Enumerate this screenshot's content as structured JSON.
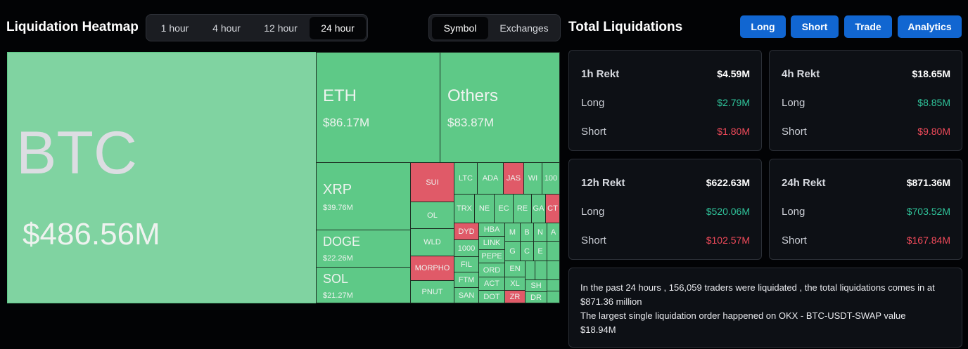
{
  "heatmap": {
    "title": "Liquidation Heatmap",
    "time_tabs": [
      "1 hour",
      "4 hour",
      "12 hour",
      "24 hour"
    ],
    "active_time_tab": "24 hour",
    "mode_tabs": [
      "Symbol",
      "Exchanges"
    ],
    "active_mode_tab": "Symbol",
    "big": [
      {
        "symbol": "BTC",
        "value": "$486.56M"
      },
      {
        "symbol": "ETH",
        "value": "$86.17M"
      },
      {
        "symbol": "Others",
        "value": "$83.87M"
      },
      {
        "symbol": "XRP",
        "value": "$39.76M"
      },
      {
        "symbol": "DOGE",
        "value": "$22.26M"
      },
      {
        "symbol": "SOL",
        "value": "$21.27M"
      }
    ],
    "small": [
      "SUI",
      "OL",
      "WLD",
      "MORPHO",
      "PNUT",
      "LTC",
      "ADA",
      "JAS",
      "WI",
      "100",
      "TRX",
      "NE",
      "EC",
      "RE",
      "GA",
      "CT",
      "DYD",
      "HBA",
      "LINK",
      "PEPE",
      "ORD",
      "ACT",
      "DOT",
      "1000",
      "FIL",
      "FTM",
      "SAN",
      "M",
      "B",
      "N",
      "A",
      "G",
      "C",
      "E",
      "EN",
      "XL",
      "ZR",
      "SH",
      "DR"
    ]
  },
  "total": {
    "title": "Total Liquidations",
    "buttons": [
      "Long",
      "Short",
      "Trade",
      "Analytics"
    ],
    "long_label": "Long",
    "short_label": "Short",
    "cards": [
      {
        "period": "1h Rekt",
        "total": "$4.59M",
        "long": "$2.79M",
        "short": "$1.80M"
      },
      {
        "period": "4h Rekt",
        "total": "$18.65M",
        "long": "$8.85M",
        "short": "$9.80M"
      },
      {
        "period": "12h Rekt",
        "total": "$622.63M",
        "long": "$520.06M",
        "short": "$102.57M"
      },
      {
        "period": "24h Rekt",
        "total": "$871.36M",
        "long": "$703.52M",
        "short": "$167.84M"
      }
    ],
    "info_line1": "In the past 24 hours , 156,059 traders were liquidated , the total liquidations comes in at $871.36 million",
    "info_line2": "The largest single liquidation order happened on OKX - BTC-USDT-SWAP value $18.94M"
  },
  "colors": {
    "long_green": "#2fc39a",
    "short_red": "#f04a5a",
    "tile_green": "#5ec987",
    "tile_red": "#e05a68",
    "accent_blue": "#1166d1"
  }
}
